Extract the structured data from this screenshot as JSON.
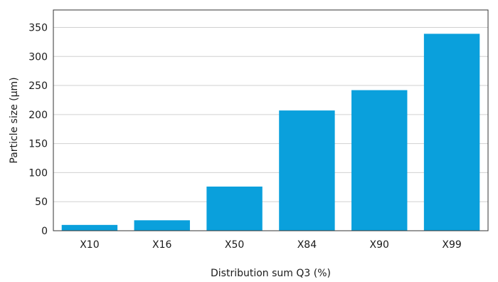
{
  "chart_data": {
    "type": "bar",
    "title": "",
    "xlabel": "Distribution sum Q3 (%)",
    "ylabel": "Particle size (µm)",
    "categories": [
      "X10",
      "X16",
      "X50",
      "X84",
      "X90",
      "X99"
    ],
    "values": [
      10,
      18,
      76,
      207,
      242,
      339
    ],
    "ylim": [
      0,
      380
    ],
    "yticks": [
      0,
      50,
      100,
      150,
      200,
      250,
      300,
      350
    ],
    "grid": "horizontal",
    "legend": "none",
    "bar_color": "#0aa0dc"
  }
}
